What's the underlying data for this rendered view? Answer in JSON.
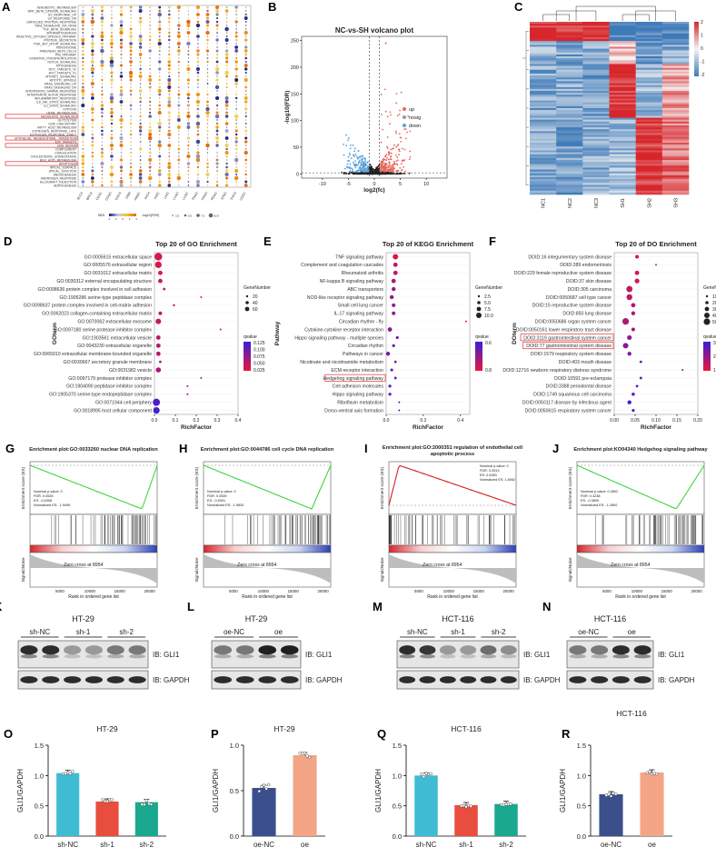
{
  "panels": {
    "A": {
      "letter": "A",
      "legend_nes": "NES",
      "legend_fdr": "-log10(FDR)",
      "nes_ticks": [
        "-4",
        "-2",
        "0",
        "2",
        "4"
      ],
      "fdr_ticks": [
        "2.5",
        "5.0",
        "7.5",
        "10.0"
      ],
      "hallmarks": [
        "XENOBIOTIC_METABOLISM",
        "WNT_BETA_CATENIN_SIGNALING",
        "UV_RESPONSE_UP",
        "UV_RESPONSE_DN",
        "UNFOLDED_PROTEIN_RESPONSE",
        "TNFA_SIGNALING_VIA_NFKB",
        "TGF_BETA_SIGNALING",
        "SPERMATOGENESIS",
        "REACTIVE_OXYGEN_SPECIES_PATHWAY",
        "PROTEIN_SECRETION",
        "PI3K_AKT_MTOR_SIGNALING",
        "PEROXISOME",
        "PANCREAS_BETA_CELLS",
        "P53_PATHWAY",
        "OXIDATIVE_PHOSPHORYLATION",
        "NOTCH_SIGNALING",
        "MYOGENESIS",
        "MYC_TARGETS_V2",
        "MYC_TARGETS_V1",
        "MTORC1_SIGNALING",
        "MITOTIC_SPINDLE",
        "KRAS_SIGNALING_UP",
        "KRAS_SIGNALING_DN",
        "INTERFERON_GAMMA_RESPONSE",
        "INTERFERON_ALPHA_RESPONSE",
        "INFLAMMATORY_RESPONSE",
        "IL6_JAK_STAT3_SIGNALING",
        "IL2_STAT5_SIGNALING",
        "HYPOXIA",
        "HEME_METABOLISM",
        "HEDGEHOG_SIGNALING",
        "GLYCOLYSIS",
        "G2M_CHECKPOINT",
        "FATTY_ACID_METABOLISM",
        "ESTROGEN_RESPONSE_LATE",
        "ESTROGEN_RESPONSE_EARLY",
        "EPITHELIAL_MESENCHYMAL_TRANSITION",
        "E2F_TARGETS",
        "DNA_REPAIR",
        "COMPLEMENT",
        "COAGULATION",
        "CHOLESTEROL_HOMEOSTASIS",
        "BILE_ACID_METABOLISM",
        "APOPTOSIS",
        "APICAL_SURFACE",
        "APICAL_JUNCTION",
        "ANGIOGENESIS",
        "ANDROGEN_RESPONSE",
        "ALLOGRAFT_REJECTION",
        "ADIPOGENESIS"
      ],
      "boxed": [
        "HEDGEHOG_SIGNALING",
        "EPITHELIAL_MESENCHYMAL_TRANSITION",
        "DNA_REPAIR",
        "APOPTOSIS"
      ],
      "cancers": [
        "BLCA",
        "BRCA",
        "CESC",
        "COAD",
        "ESCA",
        "GBM",
        "HNSC",
        "KICH",
        "KIRC",
        "LIHC",
        "LUAD",
        "LUSC",
        "PAAD",
        "PRAD",
        "READ",
        "STAD",
        "THCA",
        "UCEC"
      ]
    },
    "B": {
      "letter": "B",
      "title": "NC-vs-SH volcano plot",
      "xlabel": "log2(fc)",
      "ylabel": "-log10(FDR)",
      "xticks": [
        "-10",
        "-5",
        "0",
        "5",
        "10"
      ],
      "yticks": [
        "0",
        "50",
        "100",
        "150",
        "200",
        "250"
      ],
      "legend": [
        "up",
        "nosig",
        "down"
      ]
    },
    "C": {
      "letter": "C",
      "samples": [
        "NC1",
        "NC2",
        "NC3",
        "SH1",
        "SH2",
        "SH3"
      ],
      "scale": [
        "2",
        "1",
        "0",
        "-1",
        "-2"
      ]
    },
    "D": {
      "letter": "D",
      "title": "Top 20 of GO Enrichment",
      "ylabel": "GOterm",
      "xlabel": "RichFactor",
      "size_title": "GeneNumber",
      "size_labels": [
        "20",
        "40",
        "60"
      ],
      "color_title": "qvalue",
      "color_labels": [
        "0.125",
        "0.100",
        "0.075",
        "0.050",
        "0.025"
      ],
      "terms": [
        "GO:0005615 extracellular space",
        "GO:0005576 extracellular region",
        "GO:0031012 extracellular matrix",
        "GO:0030312 external encapsulating structure",
        "GO:0098636 protein complex involved in cell adhesion",
        "GO:1905286 serine-type peptidase complex",
        "GO:0098637 protein complex involved in cell-matrix adhesion",
        "GO:0062023 collagen-containing extracellular matrix",
        "GO:0070062 extracellular exosome",
        "GO:0097180 serine protease inhibitor complex",
        "GO:1903561 extracellular vesicle",
        "GO:0043230 extracellular organelle",
        "GO:0065010 extracellular membrane-bounded organelle",
        "GO:0030667 secretory granule membrane",
        "GO:0031982 vesicle",
        "GO:0097179 protease inhibitor complex",
        "GO:1904090 peptidase inhibitor complex",
        "GO:1905370 serine-type endopeptidase complex",
        "GO:0071944 cell periphery",
        "GO:0018995 host cellular component"
      ],
      "xticks": [
        "0.0",
        "0.1",
        "0.2",
        "0.3",
        "0.4"
      ]
    },
    "E": {
      "letter": "E",
      "title": "Top 20 of KEGG Enrichment",
      "ylabel": "Pathway",
      "xlabel": "RichFactor",
      "size_title": "GeneNumber",
      "size_labels": [
        "2.5",
        "5.0",
        "7.5",
        "10.0"
      ],
      "color_title": "qvalue",
      "color_labels": [
        "0.6",
        "0.8"
      ],
      "terms": [
        "TNF signaling pathway",
        "Complement and coagulation cascades",
        "Rheumatoid arthritis",
        "NF-kappa B signaling pathway",
        "ABC transporters",
        "NOD-like receptor signaling pathway",
        "Small cell lung cancer",
        "IL-17 signaling pathway",
        "Circadian rhythm - fly",
        "Cytokine-cytokine receptor interaction",
        "Hippo signaling pathway - multiple species",
        "Circadian rhythm",
        "Pathways in cancer",
        "Nicotinate and nicotinamide metabolism",
        "ECM-receptor interaction",
        "Hedgehog signaling pathway",
        "Cell adhesion molecules",
        "Hippo signaling pathway",
        "Riboflavin metabolism",
        "Dorso-ventral axis formation"
      ],
      "xticks": [
        "0.0",
        "0.2",
        "0.4"
      ]
    },
    "F": {
      "letter": "F",
      "title": "Top 20 of DO Enrichment",
      "ylabel": "DOterm",
      "xlabel": "RichFactor",
      "size_title": "GeneNumber",
      "size_labels": [
        "10",
        "20",
        "30",
        "40",
        "50"
      ],
      "color_title": "qvalue",
      "color_labels": [
        "3e-04",
        "2e-04",
        "1e-04"
      ],
      "terms": [
        "DOID:16 integumentary system disease",
        "DOID:289 endometriosis",
        "DOID:229 female reproductive system disease",
        "DOID:37 skin disease",
        "DOID:305 carcinoma",
        "DOID:0050687 cell type cancer",
        "DOID:15 reproductive system disease",
        "DOID:850 lung disease",
        "DOID:0050686 organ system cancer",
        "DOID:0050161 lower respiratory tract disease",
        "DOID:3119 gastrointestinal system cancer",
        "DOID:77 gastrointestinal system disease",
        "DOID:1579 respiratory system disease",
        "DOID:403 mouth disease",
        "DOID:12716 newborn respiratory distress syndrome",
        "DOID:10591 pre-eclampsia",
        "DOID:3388 periodontal disease",
        "DOID:1749 squamous cell carcinoma",
        "DOID:0050117 disease by infectious agent",
        "DOID:0050615 respiratory system cancer"
      ],
      "xticks": [
        "0.00",
        "0.05",
        "0.10",
        "0.15",
        "0.20"
      ]
    },
    "G": {
      "letter": "G",
      "title": "Enrichment plot:GO:0033260 nuclear DNA replication",
      "stats": [
        "Nominal p-value: 0",
        "FDR: 0.0628",
        "ES: -0.6308",
        "Normalized ES: -1.9496"
      ]
    },
    "H": {
      "letter": "H",
      "title": "Enrichment plot:GO:0044786 cell cycle DNA replication",
      "stats": [
        "Nominal p-value: 0",
        "FDR: 0.0539",
        "ES: -0.6391",
        "Normalized ES: -1.9830"
      ]
    },
    "I": {
      "letter": "I",
      "title": "Enrichment plot:GO:2000351 regulation of endothelial cell apoptotic process",
      "stats": [
        "Nominal p-value: 0",
        "FDR: 0.0513",
        "ES: 0.6363",
        "Normalized ES: 1.8052"
      ]
    },
    "J": {
      "letter": "J",
      "title": "Enrichment plot:KO04340 Hedgehog signaling pathway",
      "stats": [
        "Nominal p-value: 0.0802",
        "FDR: 0.3238",
        "ES: -0.3809",
        "Normalized ES: -1.2800"
      ]
    },
    "gsea_common": {
      "ylabel_top": "Enrichment score (ES)",
      "ylabel_bottom": "Signal2Noise",
      "xlabel": "Rank in ordered gene list",
      "zero_cross": "Zero cross at 8954",
      "xticks": [
        "5000",
        "10000",
        "15000",
        "20000"
      ]
    },
    "K": {
      "letter": "K",
      "cell": "HT-29",
      "groups": [
        "sh-NC",
        "sh-1",
        "sh-2"
      ],
      "ib1": "IB: GLI1",
      "ib2": "IB: GAPDH"
    },
    "L": {
      "letter": "L",
      "cell": "HT-29",
      "groups": [
        "oe-NC",
        "oe"
      ],
      "ib1": "IB: GLI1",
      "ib2": "IB: GAPDH"
    },
    "M": {
      "letter": "M",
      "cell": "HCT-116",
      "groups": [
        "sh-NC",
        "sh-1",
        "sh-2"
      ],
      "ib1": "IB: GLI1",
      "ib2": "IB: GAPDH"
    },
    "N": {
      "letter": "N",
      "cell": "HCT-116",
      "groups": [
        "oe-NC",
        "oe"
      ],
      "ib1": "IB: GLI1",
      "ib2": "IB: GAPDH"
    },
    "O": {
      "letter": "O"
    },
    "P": {
      "letter": "P"
    },
    "Q": {
      "letter": "Q"
    },
    "R": {
      "letter": "R"
    }
  },
  "chart_data": [
    {
      "panel": "O",
      "type": "bar",
      "title": "HT-29",
      "ylabel": "GLI1/GAPDH",
      "ylim": [
        0,
        1.5
      ],
      "yticks": [
        "0.0",
        "0.5",
        "1.0",
        "1.5"
      ],
      "categories": [
        "sh-NC",
        "sh-1",
        "sh-2"
      ],
      "values": [
        1.04,
        0.57,
        0.56
      ],
      "colors": [
        "#3fbcd4",
        "#e84d3d",
        "#1aa88f"
      ]
    },
    {
      "panel": "P",
      "type": "bar",
      "title": "HT-29",
      "ylabel": "GLI1/GAPDH",
      "ylim": [
        0,
        1.0
      ],
      "yticks": [
        "0.0",
        "0.5",
        "1.0"
      ],
      "categories": [
        "oe-NC",
        "oe"
      ],
      "values": [
        0.53,
        0.89
      ],
      "colors": [
        "#3a4f8c",
        "#f4a585"
      ]
    },
    {
      "panel": "Q",
      "type": "bar",
      "title": "HCT-116",
      "ylabel": "GLI1/GAPDH",
      "ylim": [
        0,
        1.5
      ],
      "yticks": [
        "0.0",
        "0.5",
        "1.0",
        "1.5"
      ],
      "categories": [
        "sh-NC",
        "sh-1",
        "sh-2"
      ],
      "values": [
        1.0,
        0.51,
        0.53
      ],
      "colors": [
        "#3fbcd4",
        "#e84d3d",
        "#1aa88f"
      ]
    },
    {
      "panel": "R",
      "type": "bar",
      "title": "HCT-116",
      "ylabel": "GLI1/GAPDH",
      "ylim": [
        0,
        1.5
      ],
      "yticks": [
        "0.0",
        "0.5",
        "1.0",
        "1.5"
      ],
      "categories": [
        "oe-NC",
        "oe"
      ],
      "values": [
        0.69,
        1.05
      ],
      "colors": [
        "#3a4f8c",
        "#f4a585"
      ]
    }
  ]
}
